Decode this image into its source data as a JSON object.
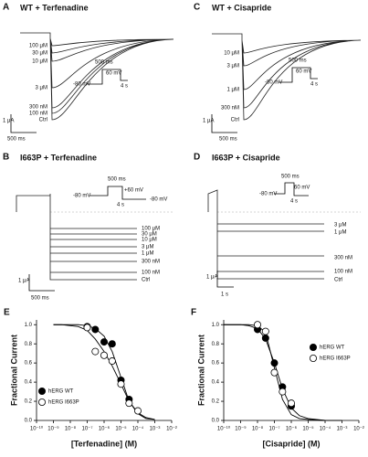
{
  "panels": [
    {
      "letter": "A",
      "title": "WT + Terfenadine",
      "trace_labels": [
        "100 μM",
        "30 μM",
        "10 μM",
        "3 μM",
        "300 nM",
        "100 nM",
        "Ctrl"
      ],
      "scale_current": "1 μA",
      "scale_time": "500 ms",
      "protocol": [
        "500 ms",
        "-80 mV",
        "60 mV",
        "4 s"
      ]
    },
    {
      "letter": "B",
      "title": "I663P + Terfenadine",
      "trace_labels": [
        "100 μM",
        "30 μM",
        "10 μM",
        "3 μM",
        "1 μM",
        "300 nM",
        "100 nM",
        "Ctrl"
      ],
      "scale_current": "1 μA",
      "scale_time": "500 ms",
      "protocol": [
        "500 ms",
        "+60 mV",
        "4 s",
        "-80 mV",
        "-80 mV"
      ]
    },
    {
      "letter": "C",
      "title": "WT + Cisapride",
      "trace_labels": [
        "10 μM",
        "3 μM",
        "1 μM",
        "300 nM",
        "Ctrl"
      ],
      "scale_current": "1 μA",
      "scale_time": "500 ms",
      "protocol": [
        "500 ms",
        "-80 mV",
        "60 mV",
        "4 s"
      ]
    },
    {
      "letter": "D",
      "title": "I663P + Cisapride",
      "trace_labels": [
        "3 μM",
        "1 μM",
        "300 nM",
        "100 nM",
        "Ctrl"
      ],
      "scale_current": "1 μA",
      "scale_time": "1 s",
      "protocol": [
        "500 ms",
        "-80 mV",
        "60 mV",
        "4 s"
      ]
    }
  ],
  "chart_data": [
    {
      "type": "scatter",
      "letter": "E",
      "xlabel": "[Terfenadine] (M)",
      "ylabel": "Fractional Current",
      "xscale": "log",
      "xlim": [
        1e-10,
        0.01
      ],
      "ylim": [
        0,
        1.05
      ],
      "xticks": [
        {
          "value": 1e-10,
          "label": "10⁻¹⁰"
        },
        {
          "value": 1e-09,
          "label": "10⁻⁹"
        },
        {
          "value": 1e-08,
          "label": "10⁻⁸"
        },
        {
          "value": 1e-07,
          "label": "10⁻⁷"
        },
        {
          "value": 1e-06,
          "label": "10⁻⁶"
        },
        {
          "value": 1e-05,
          "label": "10⁻⁵"
        },
        {
          "value": 0.0001,
          "label": "10⁻⁴"
        },
        {
          "value": 0.001,
          "label": "10⁻³"
        },
        {
          "value": 0.01,
          "label": "10⁻²"
        }
      ],
      "yticks": [
        {
          "value": 0,
          "label": "0.0"
        },
        0.2,
        0.4,
        0.6,
        0.8,
        {
          "value": 1,
          "label": "1.0"
        }
      ],
      "legend": "lower-left",
      "series": [
        {
          "name": "hERG WT",
          "marker": "filled",
          "color": "#000000",
          "x": [
            1e-07,
            3e-07,
            1e-06,
            3e-06,
            1e-05,
            3e-05
          ],
          "values": [
            0.98,
            0.95,
            0.82,
            0.8,
            0.42,
            0.22
          ]
        },
        {
          "name": "hERG I663P",
          "marker": "open",
          "color": "#000000",
          "x": [
            1e-07,
            3e-07,
            1e-06,
            3e-06,
            1e-05,
            3e-05,
            0.0001
          ],
          "values": [
            0.97,
            0.72,
            0.68,
            0.62,
            0.38,
            0.18,
            0.1
          ]
        }
      ],
      "fits": [
        {
          "x": [
            1e-09,
            3e-09,
            1e-08,
            3e-08,
            1e-07,
            3e-07,
            1e-06,
            3e-06,
            1e-05,
            3e-05,
            0.0001,
            0.0003,
            0.001
          ],
          "values": [
            1,
            1,
            1,
            1,
            0.99,
            0.96,
            0.88,
            0.72,
            0.45,
            0.2,
            0.07,
            0.02,
            0.01
          ]
        },
        {
          "x": [
            1e-09,
            3e-09,
            1e-08,
            3e-08,
            1e-07,
            3e-07,
            1e-06,
            3e-06,
            1e-05,
            3e-05,
            0.0001,
            0.0003,
            0.001
          ],
          "values": [
            1,
            1,
            0.99,
            0.98,
            0.94,
            0.85,
            0.72,
            0.57,
            0.38,
            0.2,
            0.08,
            0.03,
            0.01
          ]
        }
      ]
    },
    {
      "type": "scatter",
      "letter": "F",
      "xlabel": "[Cisapride] (M)",
      "ylabel": "Fractional Current",
      "xscale": "log",
      "xlim": [
        1e-10,
        0.01
      ],
      "ylim": [
        0,
        1.05
      ],
      "xticks": [
        {
          "value": 1e-10,
          "label": "10⁻¹⁰"
        },
        {
          "value": 1e-09,
          "label": "10⁻⁹"
        },
        {
          "value": 1e-08,
          "label": "10⁻⁸"
        },
        {
          "value": 1e-07,
          "label": "10⁻⁷"
        },
        {
          "value": 1e-06,
          "label": "10⁻⁶"
        },
        {
          "value": 1e-05,
          "label": "10⁻⁵"
        },
        {
          "value": 0.0001,
          "label": "10⁻⁴"
        },
        {
          "value": 0.001,
          "label": "10⁻³"
        },
        {
          "value": 0.01,
          "label": "10⁻²"
        }
      ],
      "yticks": [
        {
          "value": 0,
          "label": "0.0"
        },
        0.2,
        0.4,
        0.6,
        0.8,
        {
          "value": 1,
          "label": "1.0"
        }
      ],
      "legend": "upper-right",
      "series": [
        {
          "name": "hERG WT",
          "marker": "filled",
          "color": "#000000",
          "x": [
            1e-08,
            3e-08,
            1e-07,
            3e-07,
            1e-06
          ],
          "values": [
            0.95,
            0.86,
            0.6,
            0.35,
            0.15
          ]
        },
        {
          "name": "hERG I663P",
          "marker": "open",
          "color": "#000000",
          "x": [
            1e-08,
            3e-08,
            1e-07,
            3e-07,
            1e-06
          ],
          "values": [
            1,
            0.93,
            0.5,
            0.3,
            0.18
          ]
        }
      ],
      "fits": [
        {
          "x": [
            1e-10,
            1e-09,
            3e-09,
            1e-08,
            3e-08,
            1e-07,
            3e-07,
            1e-06,
            3e-06,
            1e-05,
            0.0001,
            0.001
          ],
          "values": [
            1,
            1,
            0.99,
            0.96,
            0.85,
            0.6,
            0.33,
            0.13,
            0.05,
            0.02,
            0,
            0
          ]
        },
        {
          "x": [
            1e-10,
            1e-09,
            3e-09,
            1e-08,
            3e-08,
            1e-07,
            3e-07,
            1e-06,
            3e-06,
            1e-05,
            0.0001,
            0.001
          ],
          "values": [
            1,
            1,
            1,
            0.99,
            0.92,
            0.55,
            0.22,
            0.06,
            0.02,
            0.01,
            0,
            0
          ]
        }
      ]
    }
  ]
}
